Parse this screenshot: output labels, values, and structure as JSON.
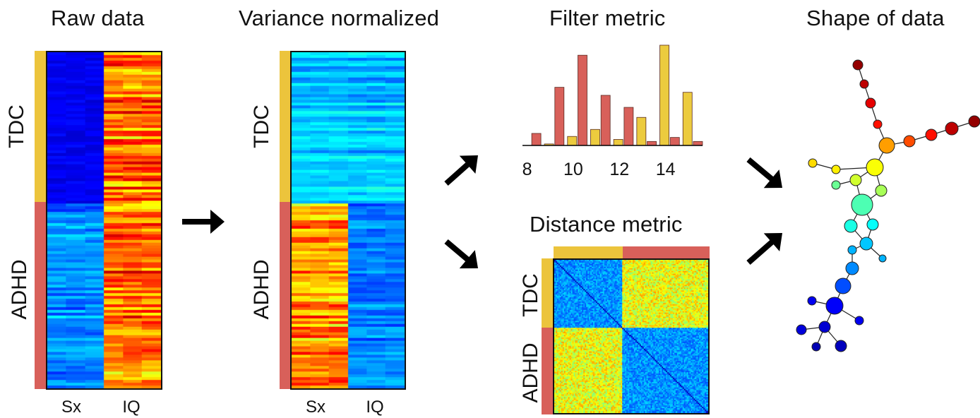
{
  "colors": {
    "group_tdc": "#ecc43c",
    "group_adhd": "#d8605a",
    "bar_tdc": "#eccb3e",
    "bar_adhd": "#d8605a",
    "arrow": "#000000"
  },
  "panels": {
    "raw_data": {
      "title": "Raw data",
      "group_labels": [
        "TDC",
        "ADHD"
      ],
      "column_labels": [
        "Sx",
        "IQ"
      ]
    },
    "variance_normalized": {
      "title": "Variance normalized",
      "group_labels": [
        "TDC",
        "ADHD"
      ],
      "column_labels": [
        "Sx",
        "IQ"
      ]
    },
    "filter_metric": {
      "title": "Filter metric",
      "tick_labels": [
        "8",
        "10",
        "12",
        "14"
      ]
    },
    "distance_metric": {
      "title": "Distance metric",
      "group_labels": [
        "TDC",
        "ADHD"
      ]
    },
    "shape_of_data": {
      "title": "Shape of data"
    }
  },
  "chart_data": {
    "type": "bar",
    "x_ticks": [
      8,
      10,
      12,
      14
    ],
    "xlim": [
      7.8,
      15.6
    ],
    "ylim": [
      0,
      10
    ],
    "series": [
      {
        "x": [
          8.4,
          9.4,
          10.4,
          11.4,
          12.4,
          13.4,
          14.4,
          15.4
        ],
        "values": [
          1.2,
          5.8,
          9.0,
          5.0,
          3.8,
          0.4,
          0.8,
          0.4
        ]
      },
      {
        "x": [
          8.95,
          9.95,
          10.95,
          11.95,
          12.95,
          13.95,
          14.95
        ],
        "values": [
          0.15,
          0.9,
          1.6,
          0.6,
          2.8,
          10.0,
          5.3
        ]
      }
    ]
  }
}
